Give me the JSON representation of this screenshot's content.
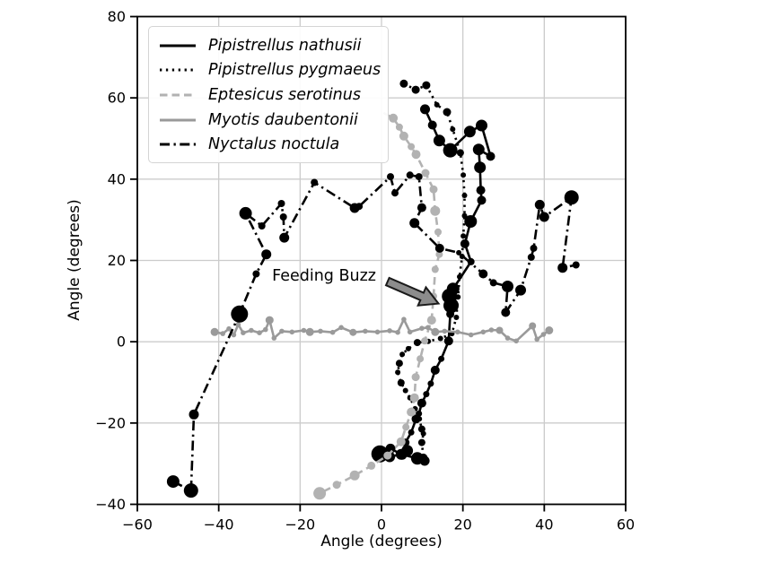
{
  "figure": {
    "background": "#ffffff"
  },
  "colors": {
    "grid": "#cccccc",
    "frame": "#000000",
    "tick": "#000000",
    "legend_border": "#d4d4d4"
  },
  "chart_data": {
    "type": "line",
    "title": "",
    "xlabel": "Angle (degrees)",
    "ylabel": "Angle (degrees)",
    "xlim": [
      -60,
      60
    ],
    "ylim": [
      -40,
      80
    ],
    "grid": true,
    "legend_position": "upper left",
    "x_ticks": [
      -60,
      -40,
      -20,
      0,
      20,
      40,
      60
    ],
    "x_tick_labels": [
      "−60",
      "−40",
      "−20",
      "0",
      "20",
      "40",
      "60"
    ],
    "y_ticks": [
      -40,
      -20,
      0,
      20,
      40,
      60,
      80
    ],
    "y_tick_labels": [
      "−40",
      "−20",
      "0",
      "20",
      "40",
      "60",
      "80"
    ],
    "series": [
      {
        "name": "Pipistrellus nathusii",
        "color": "#000000",
        "line_style": "solid",
        "line_width": 2.6,
        "points": [
          [
            10.7,
            57.2,
            5.5
          ],
          [
            12.5,
            53.3,
            5
          ],
          [
            14.2,
            49.5,
            6.5
          ],
          [
            16.9,
            47.1,
            8
          ],
          [
            21.7,
            51.7,
            6.5
          ],
          [
            24.6,
            53.2,
            6.5
          ],
          [
            26.8,
            45.6,
            5
          ],
          [
            23.9,
            47.3,
            6.5
          ],
          [
            24.2,
            42.9,
            6.5
          ],
          [
            24.4,
            37.3,
            5
          ],
          [
            24.6,
            34.8,
            5
          ],
          [
            21.9,
            29.6,
            7
          ],
          [
            20.5,
            24.1,
            5
          ],
          [
            22.0,
            19.7,
            4
          ],
          [
            17.6,
            13.0,
            7
          ],
          [
            16.7,
            11.2,
            8.5
          ],
          [
            17.1,
            8.9,
            8.5
          ],
          [
            16.9,
            6.8,
            4.5
          ],
          [
            16.5,
            0.2,
            5
          ],
          [
            14.7,
            -4.2,
            3.5
          ],
          [
            13.2,
            -7.0,
            5
          ],
          [
            12.1,
            -10.3,
            3.5
          ],
          [
            11.0,
            -12.9,
            3.5
          ],
          [
            9.9,
            -15.1,
            5
          ],
          [
            9.2,
            -17.7,
            3.5
          ],
          [
            8.5,
            -19.0,
            5
          ],
          [
            7.3,
            -22.3,
            3.5
          ],
          [
            5.9,
            -24.8,
            4.5
          ],
          [
            6.3,
            -26.8,
            6.5
          ],
          [
            5.1,
            -27.8,
            5.5
          ],
          [
            2.2,
            -26.3,
            5.5
          ],
          [
            -0.4,
            -27.6,
            9.5
          ],
          [
            2.0,
            -28.3,
            6
          ],
          [
            4.8,
            -27.7,
            6
          ],
          [
            8.8,
            -28.7,
            7
          ],
          [
            10.6,
            -29.3,
            5.5
          ]
        ]
      },
      {
        "name": "Pipistrellus pygmaeus",
        "color": "#000000",
        "line_style": "dotted",
        "line_width": 2.6,
        "points": [
          [
            5.5,
            63.5,
            4.5
          ],
          [
            8.4,
            62.0,
            4.5
          ],
          [
            11.0,
            63.1,
            4.5
          ],
          [
            13.6,
            58.3,
            3
          ],
          [
            16.1,
            56.5,
            4.5
          ],
          [
            17.5,
            52.3,
            3
          ],
          [
            19.4,
            46.5,
            4
          ],
          [
            20.1,
            41.0,
            3
          ],
          [
            20.4,
            36.0,
            3
          ],
          [
            20.4,
            31.0,
            3
          ],
          [
            20.1,
            26.0,
            3
          ],
          [
            19.8,
            21.0,
            3
          ],
          [
            19.2,
            16.0,
            3
          ],
          [
            18.8,
            11.0,
            3
          ],
          [
            18.4,
            6.0,
            3
          ],
          [
            17.3,
            2.0,
            3
          ],
          [
            14.5,
            0.8,
            3
          ],
          [
            11.5,
            0.1,
            3
          ],
          [
            8.8,
            -0.2,
            4
          ],
          [
            6.6,
            -1.7,
            3
          ],
          [
            5.1,
            -3.1,
            3
          ],
          [
            4.4,
            -5.3,
            4
          ],
          [
            4.0,
            -7.5,
            3
          ],
          [
            4.8,
            -10.1,
            4
          ],
          [
            5.9,
            -12.0,
            3
          ],
          [
            7.0,
            -13.8,
            3
          ],
          [
            8.3,
            -16.5,
            3
          ],
          [
            9.3,
            -19.0,
            3
          ],
          [
            9.9,
            -21.5,
            4
          ],
          [
            10.3,
            -22.6,
            3
          ],
          [
            9.9,
            -24.8,
            4
          ],
          [
            10.3,
            -28.5,
            4.5
          ]
        ]
      },
      {
        "name": "Eptesicus serotinus",
        "color": "#b2b2b2",
        "line_style": "dashed",
        "line_width": 2.6,
        "points": [
          [
            0.5,
            56.3,
            0
          ],
          [
            2.9,
            55.0,
            5
          ],
          [
            4.4,
            52.8,
            4
          ],
          [
            5.5,
            50.6,
            5
          ],
          [
            7.3,
            48.0,
            4
          ],
          [
            8.5,
            46.1,
            5
          ],
          [
            10.8,
            41.5,
            4.5
          ],
          [
            12.8,
            37.5,
            4.5
          ],
          [
            13.2,
            32.2,
            5.5
          ],
          [
            13.9,
            27.0,
            4
          ],
          [
            14.2,
            21.5,
            4
          ],
          [
            13.2,
            17.8,
            4
          ],
          [
            12.8,
            11.2,
            4
          ],
          [
            12.3,
            5.3,
            5
          ],
          [
            10.6,
            0.2,
            4
          ],
          [
            9.5,
            -4.2,
            4
          ],
          [
            8.4,
            -8.7,
            4.5
          ],
          [
            8.1,
            -13.8,
            5
          ],
          [
            7.3,
            -17.3,
            5
          ],
          [
            6.0,
            -21.0,
            4
          ],
          [
            4.8,
            -24.6,
            5
          ],
          [
            1.5,
            -28.0,
            4.5
          ],
          [
            -2.5,
            -30.5,
            4.5
          ],
          [
            -6.6,
            -32.9,
            5.5
          ],
          [
            -11.0,
            -35.2,
            4.5
          ],
          [
            -15.2,
            -37.3,
            7
          ]
        ]
      },
      {
        "name": "Myotis daubentonii",
        "color": "#9a9a9a",
        "line_style": "solid",
        "line_width": 2.6,
        "points": [
          [
            -41.0,
            2.4,
            4.5
          ],
          [
            -39.0,
            2.0,
            2.8
          ],
          [
            -37.5,
            3.2,
            2.8
          ],
          [
            -36.3,
            1.7,
            2.8
          ],
          [
            -35.2,
            4.2,
            2.8
          ],
          [
            -34.0,
            2.2,
            2.8
          ],
          [
            -32.0,
            2.8,
            2.8
          ],
          [
            -30.0,
            2.2,
            2.8
          ],
          [
            -28.5,
            3.0,
            2.8
          ],
          [
            -27.5,
            5.3,
            4.5
          ],
          [
            -26.4,
            0.9,
            2.8
          ],
          [
            -24.5,
            2.6,
            2.8
          ],
          [
            -22.0,
            2.4,
            2.8
          ],
          [
            -19.1,
            2.8,
            2.8
          ],
          [
            -17.6,
            2.4,
            4.5
          ],
          [
            -15.0,
            2.6,
            2.8
          ],
          [
            -12.0,
            2.3,
            2.8
          ],
          [
            -9.9,
            3.5,
            2.8
          ],
          [
            -7.0,
            2.3,
            4
          ],
          [
            -4.0,
            2.6,
            2.8
          ],
          [
            -1.0,
            2.4,
            2.8
          ],
          [
            2.0,
            2.7,
            2.8
          ],
          [
            4.0,
            2.3,
            2.8
          ],
          [
            5.5,
            5.5,
            2.8
          ],
          [
            7.0,
            2.4,
            2.8
          ],
          [
            9.9,
            3.3,
            2.8
          ],
          [
            11.4,
            3.5,
            2.8
          ],
          [
            13.2,
            2.4,
            4.5
          ],
          [
            15.5,
            2.6,
            2.8
          ],
          [
            18.7,
            2.4,
            2.8
          ],
          [
            22.0,
            1.7,
            2.8
          ],
          [
            25.0,
            2.4,
            2.8
          ],
          [
            27.0,
            2.9,
            2.8
          ],
          [
            29.0,
            2.8,
            4
          ],
          [
            31.0,
            0.9,
            2.8
          ],
          [
            33.1,
            0.2,
            2.8
          ],
          [
            37.1,
            3.9,
            4
          ],
          [
            38.2,
            0.6,
            2.8
          ],
          [
            39.8,
            1.8,
            2.8
          ],
          [
            41.2,
            2.8,
            4.5
          ]
        ]
      },
      {
        "name": "Nyctalus noctula",
        "color": "#000000",
        "line_style": "dashdot",
        "line_width": 2.6,
        "points": [
          [
            -51.2,
            -34.4,
            7
          ],
          [
            -46.8,
            -36.6,
            8
          ],
          [
            -46.1,
            -17.9,
            5.5
          ],
          [
            -34.9,
            6.8,
            9.5
          ],
          [
            -30.8,
            16.7,
            4
          ],
          [
            -28.3,
            21.5,
            5.5
          ],
          [
            -33.4,
            31.6,
            7
          ],
          [
            -29.4,
            28.5,
            4
          ],
          [
            -24.6,
            34.0,
            4
          ],
          [
            -24.1,
            30.7,
            4
          ],
          [
            -23.9,
            25.6,
            5.5
          ],
          [
            -16.5,
            39.2,
            4
          ],
          [
            -6.6,
            32.9,
            5.5
          ],
          [
            -5.5,
            33.3,
            4
          ],
          [
            2.2,
            40.6,
            4
          ],
          [
            3.3,
            36.6,
            4
          ],
          [
            7.0,
            41.0,
            4
          ],
          [
            9.2,
            40.6,
            4
          ],
          [
            9.9,
            33.0,
            5
          ],
          [
            8.1,
            29.2,
            5.5
          ],
          [
            14.3,
            23.0,
            5
          ],
          [
            19.0,
            21.9,
            3
          ],
          [
            25.0,
            16.7,
            5
          ],
          [
            27.5,
            14.5,
            4
          ],
          [
            31.0,
            13.6,
            6.5
          ],
          [
            30.5,
            7.2,
            5
          ],
          [
            34.2,
            12.7,
            6
          ],
          [
            36.8,
            20.8,
            4
          ],
          [
            37.4,
            23.0,
            4
          ],
          [
            38.9,
            33.7,
            5.5
          ],
          [
            40.0,
            30.7,
            5.5
          ],
          [
            46.7,
            35.5,
            8
          ],
          [
            44.5,
            18.2,
            5.5
          ],
          [
            47.8,
            18.9,
            4
          ]
        ]
      }
    ],
    "annotation": {
      "text": "Feeding Buzz",
      "color": "#a0a0a0",
      "text_pos": [
        -26.9,
        15.0
      ],
      "arrow_from": [
        1.5,
        14.8
      ],
      "arrow_to": [
        14.0,
        9.4
      ],
      "arrow_fill": "#8c8c8c",
      "arrow_stroke": "#1a1a1a"
    }
  }
}
